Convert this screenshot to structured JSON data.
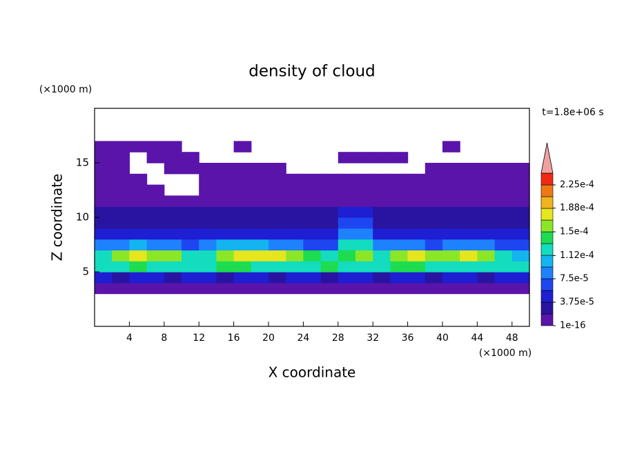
{
  "chart_data": {
    "type": "contour",
    "title": "density of cloud",
    "y_unit_label": "(×1000 m)",
    "x_unit_label": "(×1000 m)",
    "time_label": "t=1.8e+06 s",
    "xlabel": "X coordinate",
    "ylabel": "Z coordinate",
    "xlim": [
      0,
      50
    ],
    "ylim": [
      0,
      20
    ],
    "xticks": [
      4,
      8,
      12,
      16,
      20,
      24,
      28,
      32,
      36,
      40,
      44,
      48
    ],
    "yticks": [
      5,
      10,
      15
    ],
    "x_edges": [
      0,
      2,
      4,
      6,
      8,
      10,
      12,
      14,
      16,
      18,
      20,
      22,
      24,
      26,
      28,
      30,
      32,
      34,
      36,
      38,
      40,
      42,
      44,
      46,
      48,
      50
    ],
    "z_edges": [
      3,
      4,
      5,
      6,
      7,
      8,
      9,
      10,
      11,
      12,
      13,
      14,
      15,
      16,
      17
    ],
    "values": [
      [
        1e-05,
        1e-05,
        1e-05,
        1e-05,
        1e-05,
        1e-05,
        1e-05,
        1e-05,
        1e-05,
        1e-05,
        1e-05,
        1e-05,
        1e-05,
        1e-05,
        1e-05,
        1e-05,
        1e-05,
        1e-05,
        1e-05,
        1e-05,
        1e-05,
        1e-05,
        1e-05,
        1e-05,
        1e-05
      ],
      [
        4e-05,
        3e-05,
        4e-05,
        4e-05,
        3e-05,
        4e-05,
        4e-05,
        3e-05,
        4e-05,
        4e-05,
        3e-05,
        4e-05,
        4e-05,
        3e-05,
        4e-05,
        4e-05,
        3e-05,
        4e-05,
        4e-05,
        3e-05,
        4e-05,
        4e-05,
        3e-05,
        4e-05,
        4e-05
      ],
      [
        0.00012,
        0.00013,
        0.00014,
        0.00013,
        0.00012,
        0.00012,
        0.00013,
        0.00014,
        0.00014,
        0.00013,
        0.00013,
        0.00012,
        0.00013,
        0.00014,
        0.00013,
        0.00012,
        0.00013,
        0.00014,
        0.00014,
        0.00013,
        0.00012,
        0.00013,
        0.00012,
        0.00013,
        0.00012
      ],
      [
        0.00012,
        0.00016,
        0.00017,
        0.00016,
        0.00015,
        0.00012,
        0.00013,
        0.00016,
        0.00017,
        0.00018,
        0.00017,
        0.00016,
        0.00014,
        0.00012,
        0.00014,
        0.00015,
        0.00012,
        0.00016,
        0.00017,
        0.00015,
        0.00016,
        0.00017,
        0.00016,
        0.00012,
        0.00011
      ],
      [
        8e-05,
        9e-05,
        0.0001,
        9e-05,
        8e-05,
        7e-05,
        8e-05,
        0.0001,
        0.00011,
        0.0001,
        9e-05,
        8e-05,
        7e-05,
        7e-05,
        0.00012,
        0.00013,
        8e-05,
        9e-05,
        8e-05,
        7e-05,
        8e-05,
        9e-05,
        8e-05,
        7e-05,
        6e-05
      ],
      [
        5e-05,
        5e-05,
        5e-05,
        5e-05,
        5e-05,
        5e-05,
        5e-05,
        5e-05,
        5e-05,
        5e-05,
        5e-05,
        5e-05,
        5e-05,
        5e-05,
        8e-05,
        9e-05,
        5e-05,
        5e-05,
        5e-05,
        5e-05,
        5e-05,
        5e-05,
        5e-05,
        5e-05,
        5e-05
      ],
      [
        3e-05,
        3e-05,
        3e-05,
        3e-05,
        3e-05,
        3e-05,
        3e-05,
        3e-05,
        3e-05,
        3e-05,
        3e-05,
        3e-05,
        3e-05,
        3e-05,
        6e-05,
        6e-05,
        3e-05,
        3e-05,
        3e-05,
        3e-05,
        3e-05,
        3e-05,
        3e-05,
        3e-05,
        3e-05
      ],
      [
        2e-05,
        2e-05,
        2e-05,
        2e-05,
        2e-05,
        2e-05,
        2e-05,
        2e-05,
        2e-05,
        2e-05,
        2e-05,
        2e-05,
        2e-05,
        2e-05,
        4e-05,
        4e-05,
        2e-05,
        2e-05,
        2e-05,
        2e-05,
        2e-05,
        2e-05,
        2e-05,
        2e-05,
        2e-05
      ],
      [
        1e-05,
        1e-05,
        1e-05,
        1e-05,
        1e-05,
        1e-05,
        1e-05,
        1e-05,
        1e-05,
        1e-05,
        1e-05,
        1e-05,
        1e-05,
        1e-05,
        1e-05,
        1e-05,
        1e-05,
        1e-05,
        1e-05,
        1e-05,
        1e-05,
        1e-05,
        1e-05,
        1e-05,
        1e-05
      ],
      [
        1e-05,
        1e-05,
        1e-05,
        1e-05,
        null,
        null,
        1e-05,
        1e-05,
        1e-05,
        1e-05,
        1e-05,
        1e-05,
        1e-05,
        1e-05,
        1e-05,
        1e-05,
        1e-05,
        1e-05,
        1e-05,
        1e-05,
        1e-05,
        1e-05,
        1e-05,
        1e-05,
        1e-05
      ],
      [
        1e-05,
        1e-05,
        1e-05,
        null,
        null,
        null,
        1e-05,
        1e-05,
        1e-05,
        1e-05,
        1e-05,
        1e-05,
        1e-05,
        1e-05,
        1e-05,
        1e-05,
        1e-05,
        1e-05,
        1e-05,
        1e-05,
        1e-05,
        1e-05,
        1e-05,
        1e-05,
        1e-05
      ],
      [
        1e-05,
        1e-05,
        null,
        null,
        1e-05,
        1e-05,
        1e-05,
        1e-05,
        1e-05,
        1e-05,
        1e-05,
        null,
        null,
        null,
        null,
        null,
        null,
        null,
        null,
        1e-05,
        1e-05,
        1e-05,
        1e-05,
        1e-05,
        1e-05
      ],
      [
        1e-05,
        1e-05,
        null,
        1e-05,
        1e-05,
        1e-05,
        null,
        null,
        null,
        null,
        null,
        null,
        null,
        null,
        1e-05,
        1e-05,
        1e-05,
        1e-05,
        null,
        null,
        null,
        null,
        null,
        null,
        null
      ],
      [
        1e-05,
        1e-05,
        1e-05,
        1e-05,
        1e-05,
        null,
        null,
        null,
        1e-05,
        null,
        null,
        null,
        null,
        null,
        null,
        null,
        null,
        null,
        null,
        null,
        1e-05,
        null,
        null,
        null,
        null
      ]
    ],
    "levels": [
      1e-16,
      1.875e-05,
      3.75e-05,
      5.625e-05,
      7.5e-05,
      9.375e-05,
      0.0001125,
      0.00013125,
      0.00015,
      0.00016875,
      0.0001875,
      0.00020625,
      0.000225,
      0.00024375
    ],
    "colors": [
      "#5a14aa",
      "#2814a0",
      "#1e1ed2",
      "#1e46f0",
      "#1e82ff",
      "#14b4f0",
      "#14dcbe",
      "#1edc50",
      "#8ce628",
      "#e6e61e",
      "#f0b41e",
      "#f07814",
      "#f02814"
    ],
    "extend_color": "#f0a0a0",
    "colorbar_ticks": [
      1e-16,
      {
        "value": 3.75e-05,
        "label": "3.75e-5"
      },
      {
        "value": 7.5e-05,
        "label": "7.5e-5"
      },
      {
        "value": 0.000112,
        "label": "1.12e-4"
      },
      {
        "value": 0.00015,
        "label": "1.5e-4"
      },
      {
        "value": 0.000188,
        "label": "1.88e-4"
      },
      {
        "value": 0.000225,
        "label": "2.25e-4"
      }
    ]
  }
}
